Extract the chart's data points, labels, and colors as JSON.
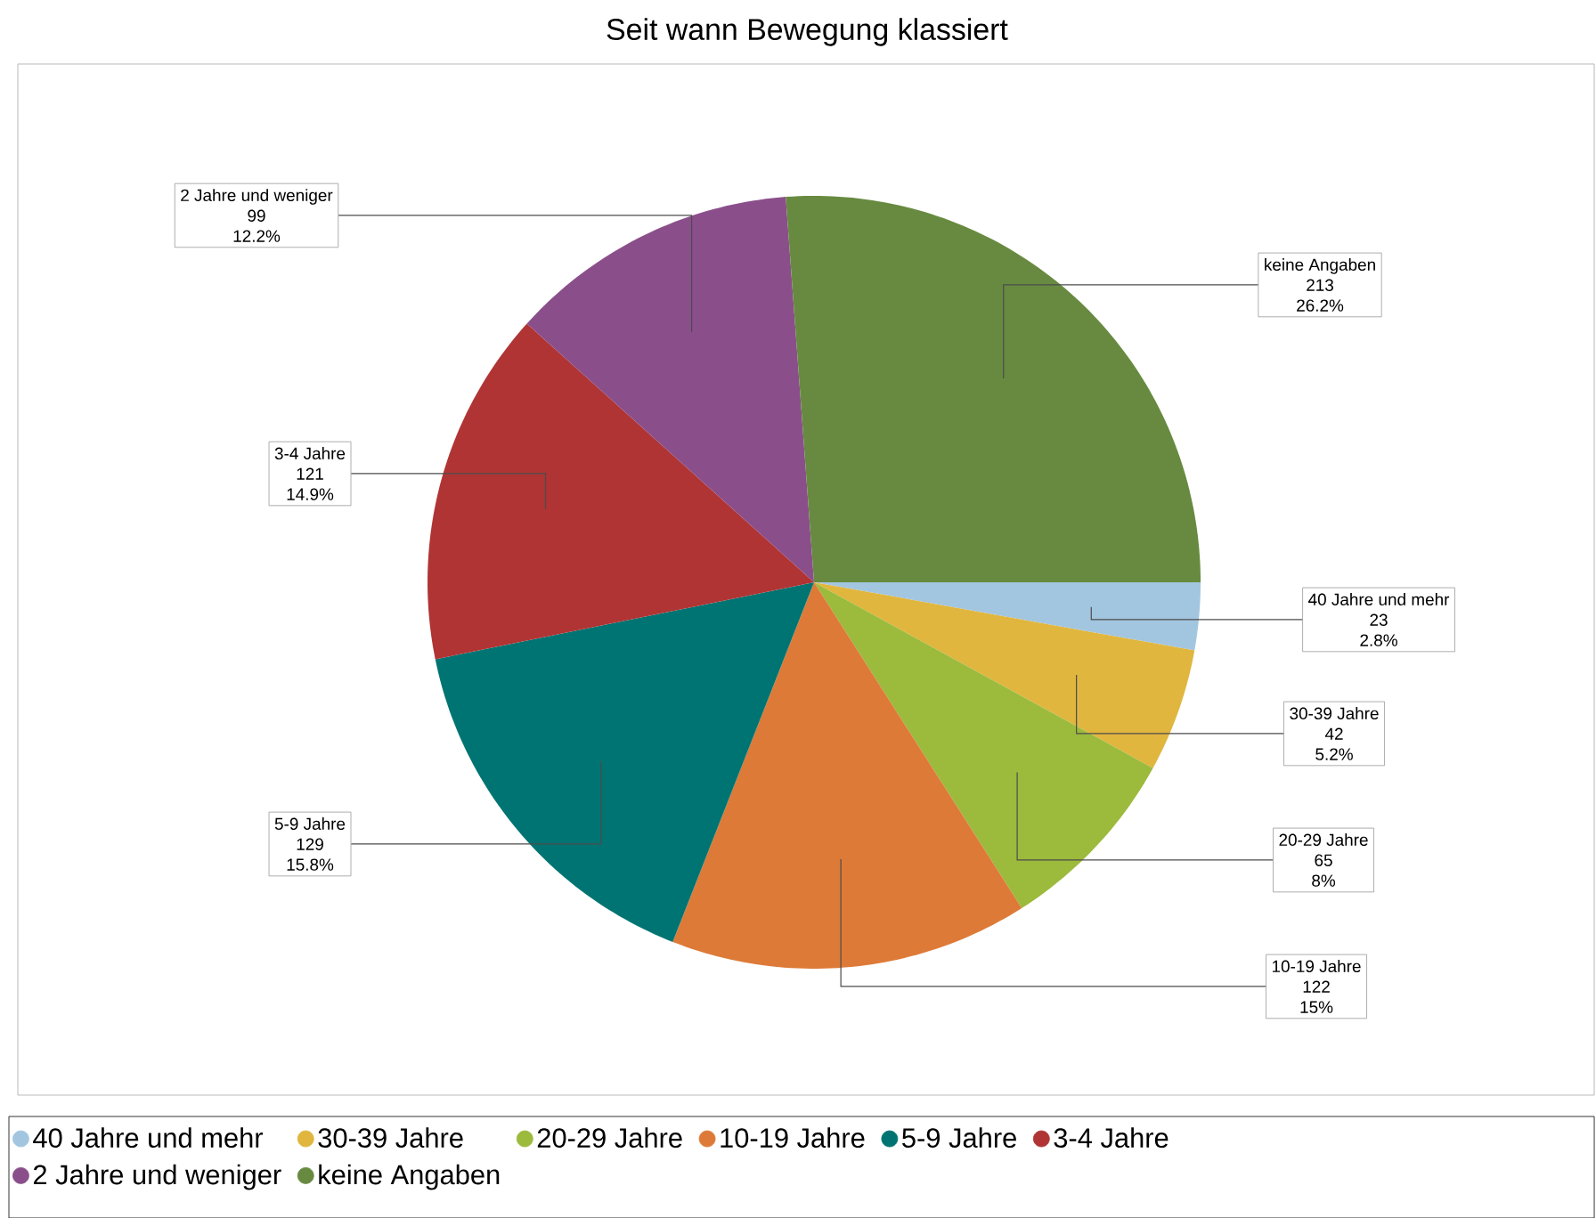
{
  "chart_data": {
    "type": "pie",
    "title": "Seit wann Bewegung klassiert",
    "categories": [
      "40 Jahre und mehr",
      "30-39 Jahre",
      "20-29 Jahre",
      "10-19 Jahre",
      "5-9 Jahre",
      "3-4 Jahre",
      "2 Jahre und weniger",
      "keine Angaben"
    ],
    "values": [
      23,
      42,
      65,
      122,
      129,
      121,
      99,
      213
    ],
    "annotations": [
      "2.8%",
      "5.2%",
      "8%",
      "15%",
      "15.8%",
      "14.9%",
      "12.2%",
      "26.2%"
    ],
    "colors": [
      "#a3c6e0",
      "#e0b63e",
      "#9cba3c",
      "#dd7a38",
      "#007472",
      "#b03434",
      "#8a4f8a",
      "#678a40"
    ],
    "data_labels": true,
    "legend": "bottom"
  }
}
